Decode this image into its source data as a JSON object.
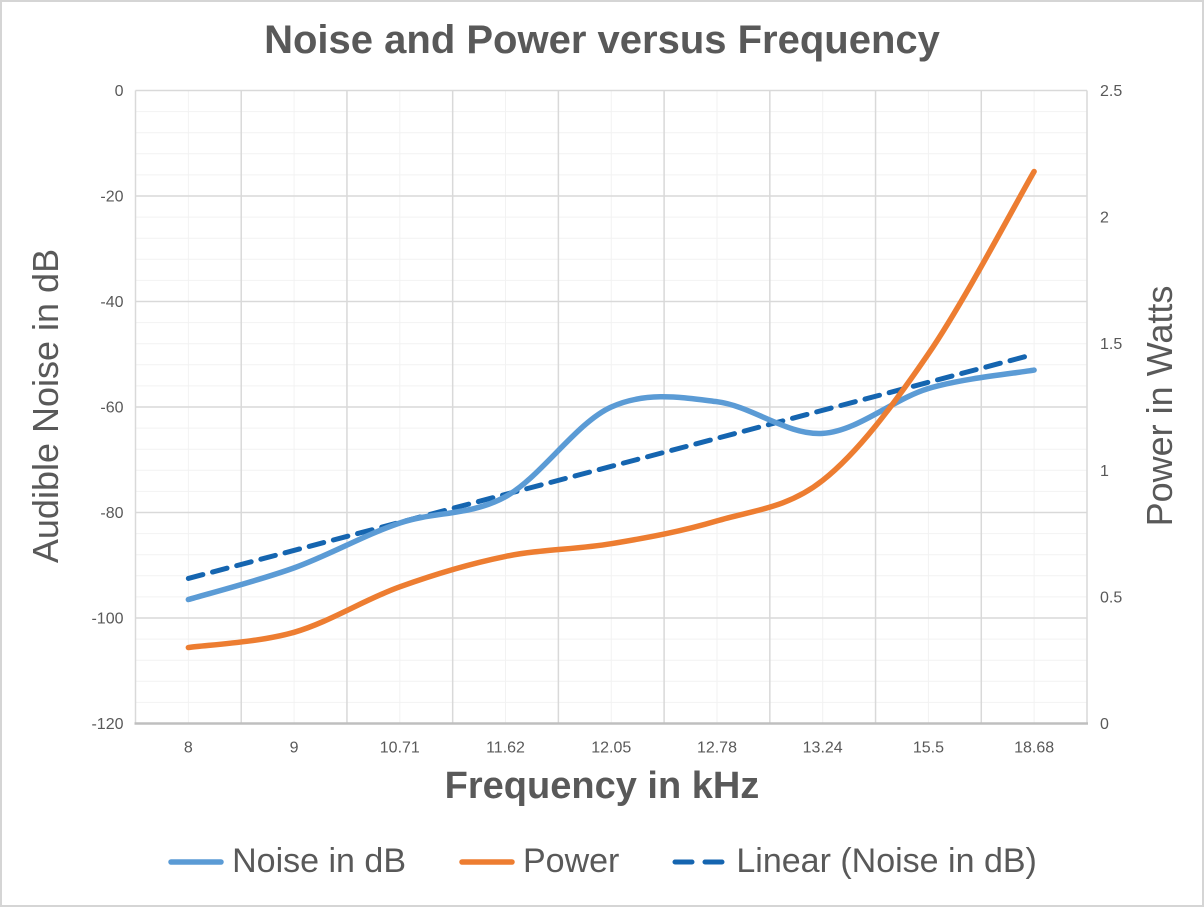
{
  "window": {
    "background": "#FFFFFF",
    "border_color": "#D5D5D5",
    "text_color": "#595959"
  },
  "chart_data": {
    "type": "line",
    "title": "Noise and Power versus Frequency",
    "x_axis": {
      "title": "Frequency in kHz",
      "categories": [
        "8",
        "9",
        "10.71",
        "11.62",
        "12.05",
        "12.78",
        "13.24",
        "15.5",
        "18.68"
      ]
    },
    "y_axis_left": {
      "title": "Audible Noise in dB",
      "min": -120,
      "max": 0,
      "major_unit": 20,
      "minor_unit": 4,
      "ticks": [
        0,
        -20,
        -40,
        -60,
        -80,
        -100,
        -120
      ]
    },
    "y_axis_right": {
      "title": "Power in Watts",
      "min": 0,
      "max": 2.5,
      "major_unit": 0.5,
      "ticks": [
        2.5,
        2,
        1.5,
        1,
        0.5,
        0
      ]
    },
    "series": [
      {
        "name": "Noise in dB",
        "axis": "left",
        "style": "smooth-line",
        "color": "#5B9BD5",
        "dashed": false,
        "values": [
          -96.5,
          -90.5,
          -82,
          -77,
          -60,
          -59,
          -65,
          -56.5,
          -53
        ]
      },
      {
        "name": "Power",
        "axis": "right",
        "style": "smooth-line",
        "color": "#ED7D31",
        "dashed": false,
        "values": [
          0.3,
          0.36,
          0.54,
          0.66,
          0.71,
          0.8,
          0.96,
          1.46,
          2.18
        ]
      },
      {
        "name": "Linear (Noise in dB)",
        "axis": "left",
        "style": "linear-trendline",
        "color": "#1565B0",
        "dashed": true,
        "values": [
          -92.5,
          -50
        ]
      }
    ],
    "legend": {
      "position": "bottom"
    },
    "grid": {
      "major_color": "#D9D9D9",
      "minor_color": "#F2F2F2",
      "axis_line_color": "#BFBFBF",
      "minor_horizontal": true,
      "minor_vertical": true
    }
  }
}
